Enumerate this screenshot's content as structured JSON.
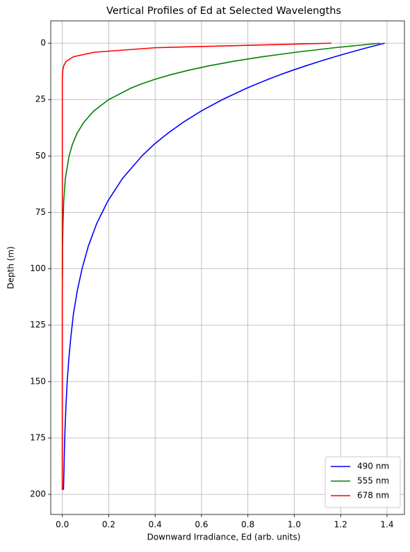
{
  "chart_data": {
    "type": "line",
    "title": "Vertical Profiles of Ed at Selected Wavelengths",
    "x_label": "Downward Irradiance, Ed (arb. units)",
    "y_label": "Depth (m)",
    "y": [
      0,
      2,
      4,
      6,
      8,
      10,
      12,
      14,
      16,
      18,
      20,
      25,
      30,
      35,
      40,
      45,
      50,
      60,
      70,
      80,
      90,
      100,
      110,
      120,
      130,
      140,
      150,
      160,
      170,
      180,
      190,
      198
    ],
    "series": [
      {
        "name": "490 nm",
        "color": "#0000ff",
        "values": [
          1.39,
          1.314,
          1.243,
          1.175,
          1.111,
          1.051,
          0.993,
          0.939,
          0.888,
          0.84,
          0.794,
          0.69,
          0.6,
          0.522,
          0.454,
          0.394,
          0.343,
          0.259,
          0.196,
          0.148,
          0.112,
          0.085,
          0.064,
          0.048,
          0.037,
          0.028,
          0.021,
          0.016,
          0.012,
          0.009,
          0.007,
          0.005
        ]
      },
      {
        "name": "555 nm",
        "color": "#008000",
        "values": [
          1.37,
          1.174,
          1.007,
          0.863,
          0.74,
          0.634,
          0.544,
          0.466,
          0.4,
          0.343,
          0.294,
          0.2,
          0.136,
          0.093,
          0.063,
          0.043,
          0.029,
          0.013,
          0.006,
          0.003,
          0.001,
          0.001,
          0,
          0,
          0,
          0,
          0,
          0,
          0,
          0,
          0,
          0
        ]
      },
      {
        "name": "678 nm",
        "color": "#ff0000",
        "values": [
          1.16,
          0.402,
          0.139,
          0.048,
          0.017,
          0.006,
          0.002,
          0.001,
          0,
          0,
          0,
          0,
          0,
          0,
          0,
          0,
          0,
          0,
          0,
          0,
          0,
          0,
          0,
          0,
          0,
          0,
          0,
          0,
          0,
          0,
          0,
          0
        ]
      }
    ],
    "xlim": [
      -0.05,
      1.475
    ],
    "xticks": [
      {
        "value": 0,
        "label": "0.0"
      },
      0.2,
      0.4,
      0.6,
      0.8,
      {
        "value": 1,
        "label": "1.0"
      },
      1.2,
      1.4
    ],
    "ylim": [
      -9.9,
      208.9
    ],
    "y_inverted": true,
    "yticks": [
      0,
      25,
      50,
      75,
      100,
      125,
      150,
      175,
      200
    ],
    "grid": true,
    "legend": "lower right"
  }
}
